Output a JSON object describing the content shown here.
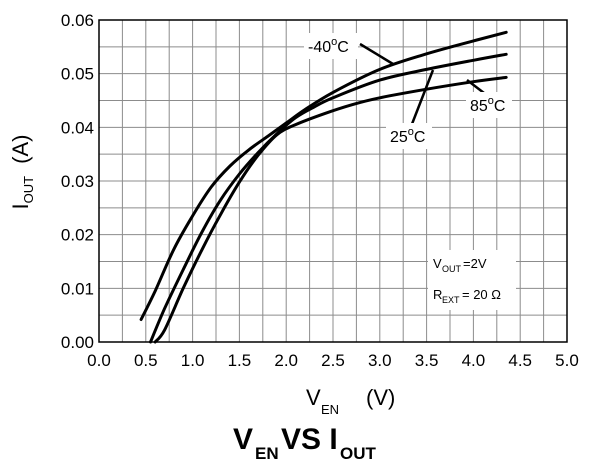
{
  "chart_data": {
    "type": "line",
    "title_parts": [
      "V",
      "EN",
      "VS I",
      "OUT"
    ],
    "xlabel_parts": [
      "V",
      "EN",
      "(V)"
    ],
    "ylabel_parts": [
      "I",
      "OUT",
      "(A)"
    ],
    "xlim": [
      0,
      5
    ],
    "ylim": [
      0,
      0.06
    ],
    "xticks": [
      "0.0",
      "0.5",
      "1.0",
      "1.5",
      "2.0",
      "2.5",
      "3.0",
      "3.5",
      "4.0",
      "4.5",
      "5.0"
    ],
    "yticks": [
      "0.00",
      "0.01",
      "0.02",
      "0.03",
      "0.04",
      "0.05",
      "0.06"
    ],
    "grid": true,
    "series": [
      {
        "name": "-40°C",
        "x": [
          0.45,
          0.6,
          0.8,
          1.0,
          1.2,
          1.4,
          1.6,
          1.8,
          2.0,
          2.2,
          2.5,
          3.0,
          3.5,
          4.0,
          4.35
        ],
        "y": [
          0.0042,
          0.0095,
          0.0173,
          0.0235,
          0.0289,
          0.0328,
          0.0358,
          0.0383,
          0.0408,
          0.0433,
          0.0465,
          0.0508,
          0.0537,
          0.0561,
          0.0577
        ]
      },
      {
        "name": "25°C",
        "x": [
          0.55,
          0.7,
          0.9,
          1.1,
          1.3,
          1.5,
          1.7,
          1.9,
          2.1,
          2.3,
          2.5,
          3.0,
          3.5,
          4.0,
          4.35
        ],
        "y": [
          0.0,
          0.0062,
          0.0135,
          0.0205,
          0.0265,
          0.0313,
          0.0353,
          0.0388,
          0.0418,
          0.0438,
          0.0455,
          0.0488,
          0.0508,
          0.0525,
          0.0536
        ]
      },
      {
        "name": "85°C",
        "x": [
          0.6,
          0.7,
          0.9,
          1.1,
          1.3,
          1.5,
          1.7,
          1.9,
          2.1,
          2.4,
          2.7,
          3.0,
          3.5,
          4.0,
          4.35
        ],
        "y": [
          0.0,
          0.0022,
          0.01,
          0.0172,
          0.0238,
          0.0298,
          0.0348,
          0.0386,
          0.0405,
          0.0425,
          0.0442,
          0.0455,
          0.0471,
          0.0485,
          0.0493
        ]
      }
    ],
    "series_labels": [
      {
        "series": 0,
        "main": "-40",
        "sup": "o",
        "unit": "C"
      },
      {
        "series": 1,
        "main": "25",
        "sup": "o",
        "unit": "C"
      },
      {
        "series": 2,
        "main": "85",
        "sup": "o",
        "unit": "C"
      }
    ],
    "conditions": [
      {
        "main": "V",
        "sub": "OUT",
        "rest": "=2V"
      },
      {
        "main": "R",
        "sub": "EXT",
        "rest": "= 20 Ω"
      }
    ],
    "colors": {
      "curve": "#000000",
      "grid": "#8c8c8c",
      "background": "#ffffff"
    }
  }
}
